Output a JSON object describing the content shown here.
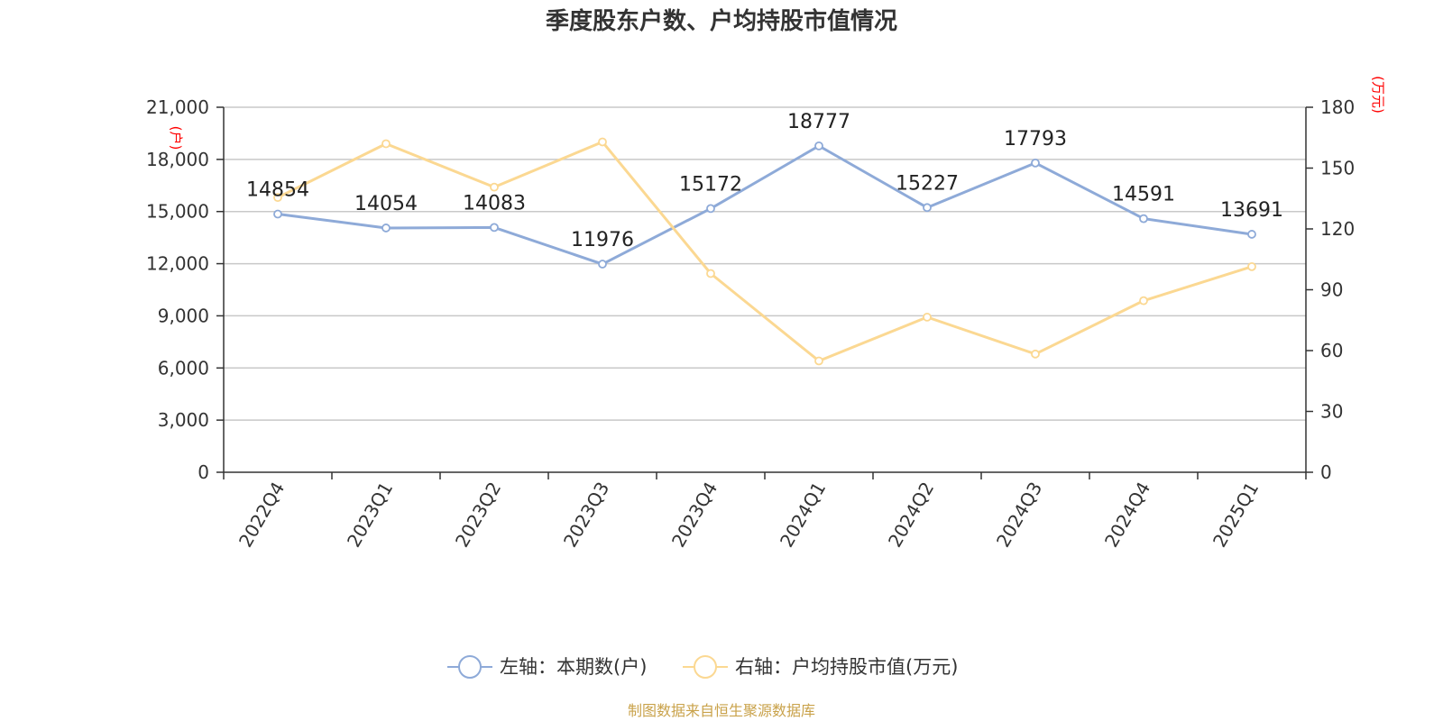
{
  "chart_data": {
    "type": "line",
    "title": "季度股东户数、户均持股市值情况",
    "categories": [
      "2022Q4",
      "2023Q1",
      "2023Q2",
      "2023Q3",
      "2023Q4",
      "2024Q1",
      "2024Q2",
      "2024Q3",
      "2024Q4",
      "2025Q1"
    ],
    "left_axis": {
      "unit": "(户)",
      "ylim": [
        0,
        21000
      ],
      "ticks": [
        0,
        3000,
        6000,
        9000,
        12000,
        15000,
        18000,
        21000
      ],
      "tick_labels": [
        "0",
        "3,000",
        "6,000",
        "9,000",
        "12,000",
        "15,000",
        "18,000",
        "21,000"
      ]
    },
    "right_axis": {
      "unit": "(万元)",
      "ylim": [
        0,
        180
      ],
      "ticks": [
        0,
        30,
        60,
        90,
        120,
        150,
        180
      ],
      "tick_labels": [
        "0",
        "30",
        "60",
        "90",
        "120",
        "150",
        "180"
      ]
    },
    "series": [
      {
        "name": "左轴：本期数(户)",
        "axis": "left",
        "color": "#8eaad8",
        "values": [
          14854,
          14054,
          14083,
          11976,
          15172,
          18777,
          15227,
          17793,
          14591,
          13691
        ],
        "labels": [
          "14854",
          "14054",
          "14083",
          "11976",
          "15172",
          "18777",
          "15227",
          "17793",
          "14591",
          "13691"
        ]
      },
      {
        "name": "右轴：户均持股市值(万元)",
        "axis": "right",
        "color": "#fbd892",
        "values": [
          135.5,
          162.0,
          140.6,
          162.9,
          98.0,
          54.9,
          76.5,
          58.3,
          84.6,
          101.4
        ]
      }
    ],
    "grid": true,
    "legend_position": "bottom-center",
    "source": "制图数据来自恒生聚源数据库",
    "source_color": "#c9a24a"
  }
}
